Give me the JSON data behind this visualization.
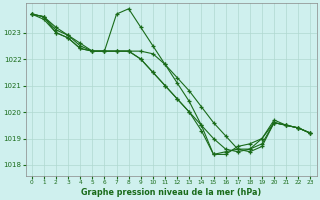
{
  "background_color": "#cff0ee",
  "plot_bg_color": "#cff0ee",
  "grid_color": "#b0d8d0",
  "line_color": "#1a6b1a",
  "marker_color": "#1a6b1a",
  "xlabel": "Graphe pression niveau de la mer (hPa)",
  "ylim": [
    1017.6,
    1024.1
  ],
  "xlim": [
    -0.5,
    23.5
  ],
  "yticks": [
    1018,
    1019,
    1020,
    1021,
    1022,
    1023
  ],
  "xticks": [
    0,
    1,
    2,
    3,
    4,
    5,
    6,
    7,
    8,
    9,
    10,
    11,
    12,
    13,
    14,
    15,
    16,
    17,
    18,
    19,
    20,
    21,
    22,
    23
  ],
  "series": [
    {
      "x": [
        0,
        1,
        2,
        3,
        4,
        5,
        6,
        7,
        8,
        9,
        10,
        11,
        12,
        13,
        14,
        15,
        16,
        17,
        18,
        19,
        20,
        21,
        22,
        23
      ],
      "y": [
        1023.7,
        1023.6,
        1023.2,
        1022.9,
        1022.5,
        1022.3,
        1022.3,
        1022.3,
        1022.3,
        1022.3,
        1022.2,
        1021.8,
        1021.3,
        1020.8,
        1020.2,
        1019.6,
        1019.1,
        1018.6,
        1018.5,
        1018.7,
        1019.6,
        1019.5,
        1019.4,
        1019.2
      ]
    },
    {
      "x": [
        0,
        1,
        2,
        3,
        4,
        5,
        6,
        7,
        8,
        9,
        10,
        11,
        12,
        13,
        14,
        15,
        16,
        17,
        18,
        19,
        20,
        21,
        22,
        23
      ],
      "y": [
        1023.7,
        1023.6,
        1023.1,
        1022.9,
        1022.6,
        1022.3,
        1022.3,
        1023.7,
        1023.9,
        1023.2,
        1022.5,
        1021.8,
        1021.1,
        1020.4,
        1019.5,
        1018.4,
        1018.5,
        1018.6,
        1018.6,
        1019.0,
        1019.6,
        1019.5,
        1019.4,
        1019.2
      ]
    },
    {
      "x": [
        0,
        1,
        2,
        3,
        4,
        5,
        6,
        7,
        8,
        9,
        10,
        11,
        12,
        13,
        14,
        15,
        16,
        17,
        18,
        19,
        20,
        21,
        22,
        23
      ],
      "y": [
        1023.7,
        1023.6,
        1023.0,
        1022.8,
        1022.4,
        1022.3,
        1022.3,
        1022.3,
        1022.3,
        1022.0,
        1021.5,
        1021.0,
        1020.5,
        1020.0,
        1019.3,
        1018.4,
        1018.4,
        1018.7,
        1018.8,
        1019.0,
        1019.7,
        1019.5,
        1019.4,
        1019.2
      ]
    },
    {
      "x": [
        0,
        1,
        2,
        3,
        4,
        5,
        6,
        7,
        8,
        9,
        10,
        11,
        12,
        13,
        14,
        15,
        16,
        17,
        18,
        19,
        20,
        21,
        22,
        23
      ],
      "y": [
        1023.7,
        1023.5,
        1023.0,
        1022.8,
        1022.4,
        1022.3,
        1022.3,
        1022.3,
        1022.3,
        1022.0,
        1021.5,
        1021.0,
        1020.5,
        1020.0,
        1019.5,
        1019.0,
        1018.6,
        1018.5,
        1018.6,
        1018.8,
        1019.6,
        1019.5,
        1019.4,
        1019.2
      ]
    }
  ]
}
